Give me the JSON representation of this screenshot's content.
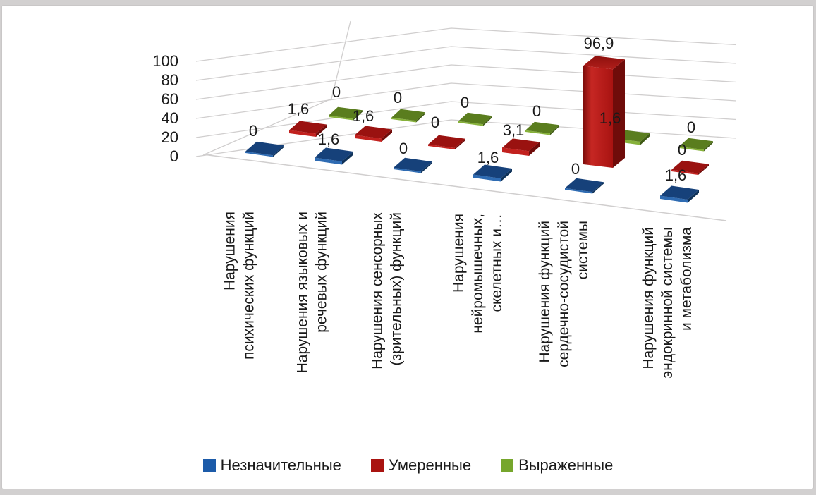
{
  "chart_data": {
    "type": "bar",
    "subtype": "3d-column",
    "title": "",
    "categories": [
      "Нарушения психических функций",
      "Нарушения языковых и речевых функций",
      "Нарушения сенсорных (зрительных) функций",
      "Нарушения нейромышечных, скелетных и…",
      "Нарушения функций сердечно-сосудистой системы",
      "Нарушения функций эндокринной системы и метаболизма"
    ],
    "category_label_lines": [
      [
        "Нарушения",
        "психических функций"
      ],
      [
        "Нарушения языковых и",
        "речевых функций"
      ],
      [
        "Нарушения сенсорных",
        "(зрительных) функций"
      ],
      [
        "Нарушения",
        "нейромышечных,",
        "скелетных и…"
      ],
      [
        "Нарушения функций",
        "сердечно-сосудистой",
        "системы"
      ],
      [
        "Нарушения функций",
        "эндокринной системы",
        "и метаболизма"
      ]
    ],
    "series": [
      {
        "name": "Незначительные",
        "color": "#1c5ba9",
        "values": [
          0,
          1.6,
          0,
          1.6,
          0,
          1.6
        ],
        "labels": [
          "0",
          "1,6",
          "0",
          "1,6",
          "0",
          "1,6"
        ]
      },
      {
        "name": "Умеренные",
        "color": "#a91310",
        "values": [
          1.6,
          1.6,
          0,
          3.1,
          96.9,
          0
        ],
        "labels": [
          "1,6",
          "1,6",
          "0",
          "3,1",
          "96,9",
          "0"
        ]
      },
      {
        "name": "Выраженные",
        "color": "#76a62c",
        "values": [
          0,
          0,
          0,
          0,
          1.6,
          0
        ],
        "labels": [
          "0",
          "0",
          "0",
          "0",
          "1,6",
          "0"
        ]
      }
    ],
    "y_axis": {
      "min": 0,
      "max": 100,
      "step": 20,
      "tick_labels": [
        "0",
        "20",
        "40",
        "60",
        "80",
        "100"
      ]
    },
    "legend": {
      "position": "bottom",
      "entries": [
        "Незначительные",
        "Умеренные",
        "Выраженные"
      ]
    },
    "gridlines": true,
    "decimal_separator": ","
  },
  "colors": {
    "gridline": "#d0cece",
    "axis_text": "#1a1a1a",
    "data_label_text": "#1a1a1a",
    "background": "#ffffff",
    "page_background": "#d2d0d0"
  }
}
